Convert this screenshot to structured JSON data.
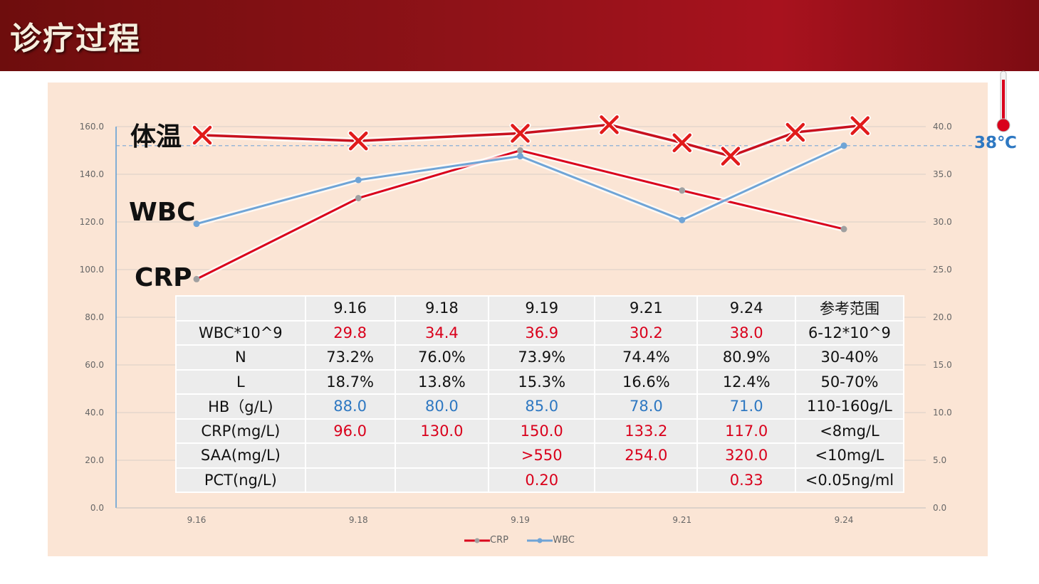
{
  "page": {
    "title": "诊疗过程"
  },
  "labels": {
    "temp": "体温",
    "wbc": "WBC",
    "crp": "CRP",
    "threshold": "38℃"
  },
  "colors": {
    "crp": "#d9001b",
    "wbc": "#6fa4d6",
    "temp": "#c8101e",
    "marker": "#e11b1b",
    "threshold": "#2e78c2"
  },
  "chart_data": {
    "type": "line",
    "x": [
      "9.16",
      "9.18",
      "9.19",
      "9.21",
      "9.24"
    ],
    "left_axis": {
      "ticks": [
        "0.0",
        "20.0",
        "40.0",
        "60.0",
        "80.0",
        "100.0",
        "120.0",
        "140.0",
        "160.0"
      ],
      "range": [
        0,
        160
      ]
    },
    "right_axis": {
      "ticks": [
        "0.0",
        "5.0",
        "10.0",
        "15.0",
        "20.0",
        "25.0",
        "30.0",
        "35.0",
        "40.0"
      ],
      "range": [
        0,
        40
      ]
    },
    "series": [
      {
        "name": "CRP",
        "axis": "left",
        "values": [
          96,
          130,
          150,
          133.2,
          117
        ]
      },
      {
        "name": "WBC",
        "axis": "right",
        "values": [
          29.8,
          34.4,
          36.9,
          30.2,
          38.0
        ]
      }
    ],
    "temperature": {
      "axis": "right",
      "x": [
        0,
        1,
        2,
        2.55,
        3,
        3.3,
        3.7,
        4.1
      ],
      "values": [
        39.1,
        38.5,
        39.3,
        40.2,
        38.3,
        36.9,
        39.4,
        40.1
      ]
    },
    "threshold": {
      "axis": "right",
      "value": 38
    }
  },
  "table": {
    "header": [
      "",
      "9.16",
      "9.18",
      "9.19",
      "9.21",
      "9.24",
      "参考范围"
    ],
    "rows": [
      {
        "label": "WBC*10^9",
        "color": "red",
        "cells": [
          "29.8",
          "34.4",
          "36.9",
          "30.2",
          "38.0"
        ],
        "ref": "6-12*10^9"
      },
      {
        "label": "N",
        "color": "black",
        "cells": [
          "73.2%",
          "76.0%",
          "73.9%",
          "74.4%",
          "80.9%"
        ],
        "ref": "30-40%"
      },
      {
        "label": "L",
        "color": "black",
        "cells": [
          "18.7%",
          "13.8%",
          "15.3%",
          "16.6%",
          "12.4%"
        ],
        "ref": "50-70%"
      },
      {
        "label": "HB（g/L)",
        "color": "blue",
        "cells": [
          "88.0",
          "80.0",
          "85.0",
          "78.0",
          "71.0"
        ],
        "ref": "110-160g/L"
      },
      {
        "label": "CRP(mg/L)",
        "color": "red",
        "cells": [
          "96.0",
          "130.0",
          "150.0",
          "133.2",
          "117.0"
        ],
        "ref": "<8mg/L"
      },
      {
        "label": "SAA(mg/L)",
        "color": "red",
        "cells": [
          "",
          "",
          ">550",
          "254.0",
          "320.0"
        ],
        "ref": "<10mg/L"
      },
      {
        "label": "PCT(ng/L)",
        "color": "red",
        "cells": [
          "",
          "",
          "0.20",
          "",
          "0.33"
        ],
        "ref": "<0.05ng/ml"
      }
    ]
  },
  "legend": [
    {
      "name": "CRP"
    },
    {
      "name": "WBC"
    }
  ]
}
